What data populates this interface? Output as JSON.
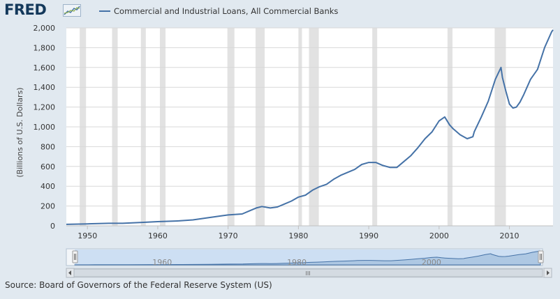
{
  "logo": {
    "text": "FRED"
  },
  "source": "Source: Board of Governors of the Federal Reserve System (US)",
  "colors": {
    "line": "#4572a7",
    "recession": "#e2e2e2",
    "plot_bg": "#ffffff",
    "page_bg": "#e1e9f0",
    "navigator_fill": "#c6dbf2"
  },
  "navigator": {
    "tick_labels": [
      "1960",
      "1980",
      "2000"
    ],
    "scrollbar_grip": "III"
  },
  "chart_data": {
    "type": "line",
    "title": "",
    "ylabel": "(Billions of U.S. Dollars)",
    "xlabel": "",
    "xlim": [
      1947,
      2016.2
    ],
    "ylim": [
      0,
      2000
    ],
    "y_ticks": [
      0,
      200,
      400,
      600,
      800,
      1000,
      1200,
      1400,
      1600,
      1800,
      2000
    ],
    "y_tick_labels": [
      "0",
      "200",
      "400",
      "600",
      "800",
      "1,000",
      "1,200",
      "1,400",
      "1,600",
      "1,800",
      "2,000"
    ],
    "x_ticks": [
      1950,
      1960,
      1970,
      1980,
      1990,
      2000,
      2010
    ],
    "x_tick_labels": [
      "1950",
      "1960",
      "1970",
      "1980",
      "1990",
      "2000",
      "2010"
    ],
    "legend": {
      "position": "top-left",
      "entries": [
        "Commercial and Industrial Loans, All Commercial Banks"
      ]
    },
    "grid": {
      "horizontal": true,
      "vertical": false
    },
    "recessions": [
      [
        1948.9,
        1949.8
      ],
      [
        1953.5,
        1954.3
      ],
      [
        1957.6,
        1958.3
      ],
      [
        1960.3,
        1961.1
      ],
      [
        1969.9,
        1970.9
      ],
      [
        1973.9,
        1975.2
      ],
      [
        1980.0,
        1980.5
      ],
      [
        1981.5,
        1982.9
      ],
      [
        1990.5,
        1991.2
      ],
      [
        2001.2,
        2001.9
      ],
      [
        2007.9,
        2009.5
      ]
    ],
    "series": [
      {
        "name": "Commercial and Industrial Loans, All Commercial Banks",
        "x": [
          1947,
          1950,
          1953,
          1955,
          1958,
          1960,
          1963,
          1965,
          1967,
          1969,
          1970,
          1972,
          1973,
          1974,
          1974.8,
          1976,
          1977,
          1978,
          1979,
          1980,
          1981,
          1982,
          1983,
          1984,
          1985,
          1986,
          1987,
          1988,
          1989,
          1990,
          1991,
          1992,
          1993,
          1994,
          1995,
          1996,
          1997,
          1998,
          1999,
          2000,
          2000.8,
          2001.5,
          2002,
          2003,
          2004,
          2004.8,
          2005,
          2006,
          2007,
          2008,
          2008.8,
          2009,
          2009.5,
          2010,
          2010.5,
          2011,
          2011.5,
          2012,
          2013,
          2014,
          2015,
          2016,
          2016.2
        ],
        "values": [
          15,
          20,
          25,
          25,
          35,
          42,
          50,
          60,
          80,
          100,
          110,
          120,
          150,
          180,
          195,
          180,
          190,
          220,
          250,
          290,
          310,
          360,
          395,
          420,
          470,
          510,
          540,
          570,
          620,
          640,
          640,
          610,
          590,
          590,
          650,
          710,
          790,
          880,
          950,
          1060,
          1100,
          1020,
          980,
          920,
          880,
          900,
          950,
          1100,
          1260,
          1480,
          1600,
          1500,
          1360,
          1230,
          1190,
          1200,
          1250,
          1320,
          1480,
          1580,
          1800,
          1960,
          1980
        ]
      }
    ]
  }
}
